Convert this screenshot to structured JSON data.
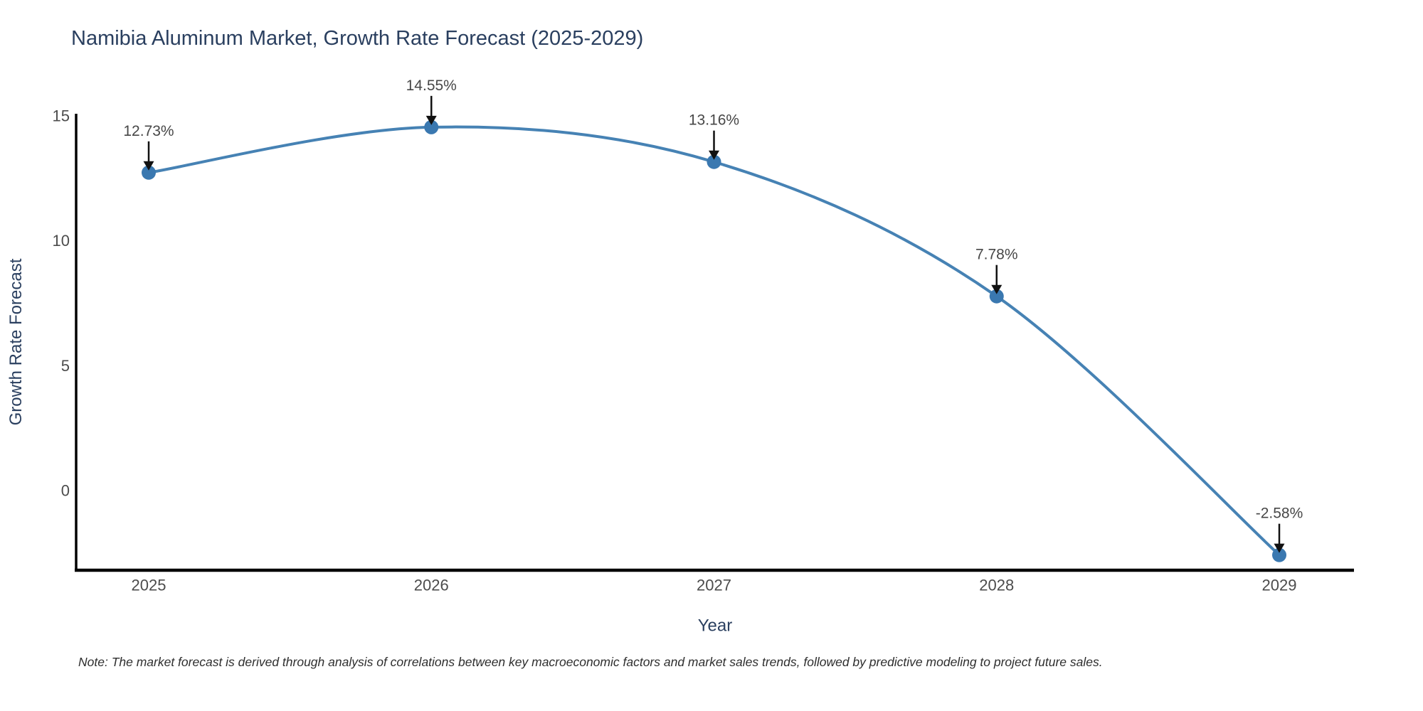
{
  "header": {
    "title": "Namibia Aluminum Market, Growth Rate Forecast (2025-2029)"
  },
  "footer": {
    "note": "Note: The market forecast is derived through analysis of correlations between key macroeconomic factors and market sales trends, followed by predictive modeling to project future sales."
  },
  "chart_data": {
    "type": "line",
    "line_shape": "spline",
    "markers": true,
    "grid": false,
    "legend": false,
    "title": "Namibia Aluminum Market, Growth Rate Forecast (2025-2029)",
    "xlabel": "Year",
    "ylabel": "Growth Rate Forecast",
    "x": [
      2025,
      2026,
      2027,
      2028,
      2029
    ],
    "values": [
      12.73,
      14.55,
      13.16,
      7.78,
      -2.58
    ],
    "point_labels": [
      "12.73%",
      "14.55%",
      "13.16%",
      "7.78%",
      "-2.58%"
    ],
    "xticks": [
      "2025",
      "2026",
      "2027",
      "2028",
      "2029"
    ],
    "yticks": [
      0,
      5,
      10,
      15
    ],
    "ylim": [
      -3.2,
      15.1
    ],
    "annotation_style": "black-arrow-pointing-down",
    "colors": {
      "line": "#4682b4",
      "marker": "#3a78b0",
      "arrow": "#111111",
      "axis": "#000000",
      "title_text": "#2a3f5f",
      "tick_text": "#4c4c4c",
      "note_text": "#2e2e2e",
      "background": "#ffffff"
    }
  }
}
